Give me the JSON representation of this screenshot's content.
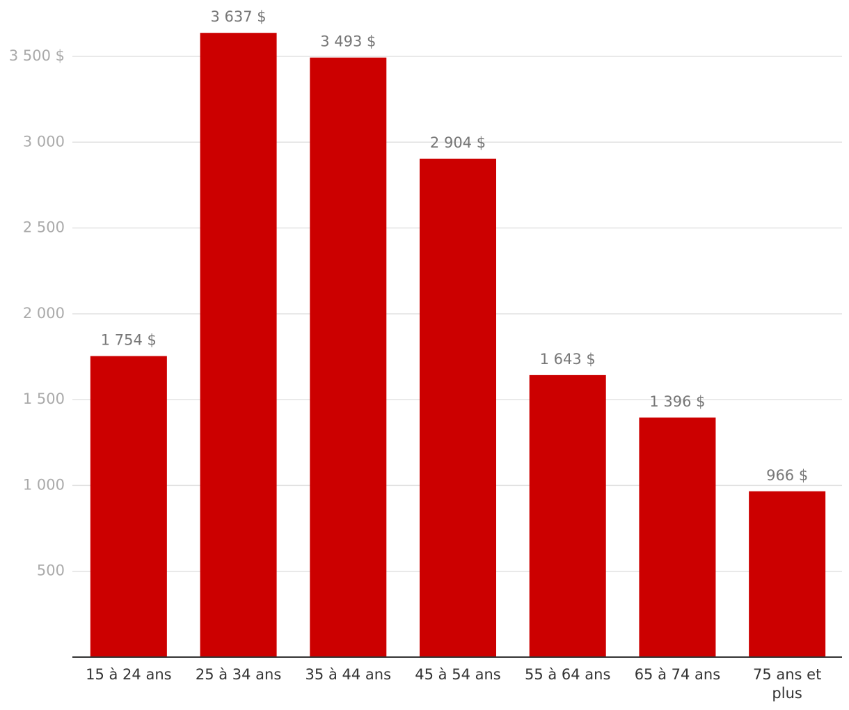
{
  "chart_data": {
    "type": "bar",
    "categories": [
      "15 à 24 ans",
      "25 à 34 ans",
      "35 à 44 ans",
      "45 à 54 ans",
      "55 à 64 ans",
      "65 à 74 ans",
      "75 ans et plus"
    ],
    "values": [
      1754,
      3637,
      3493,
      2904,
      1643,
      1396,
      966
    ],
    "value_labels": [
      "1 754 $",
      "3 637 $",
      "3 493 $",
      "2 904 $",
      "1 643 $",
      "1 396 $",
      "966 $"
    ],
    "color": "#cc0000",
    "ylim": [
      0,
      3800
    ],
    "yticks": [
      500,
      {
        "value": 1000,
        "label": "1 000"
      },
      {
        "value": 1500,
        "label": "1 500"
      },
      {
        "value": 2000,
        "label": "2 000"
      },
      {
        "value": 2500,
        "label": "2 500"
      },
      {
        "value": 3000,
        "label": "3 000"
      },
      {
        "value": 3500,
        "label": "3 500 $"
      }
    ],
    "grid": true
  }
}
